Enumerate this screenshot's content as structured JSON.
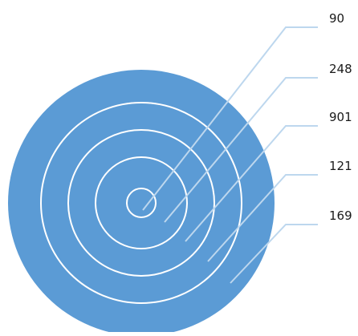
{
  "diagram": {
    "type": "concentric-target",
    "fill_color": "#5b9bd5",
    "ring_stroke_color": "#ffffff",
    "callout_line_color": "#bdd7ee",
    "levels": [
      {
        "label": "90"
      },
      {
        "label": "248"
      },
      {
        "label": "901"
      },
      {
        "label": "121"
      },
      {
        "label": "169"
      }
    ]
  }
}
